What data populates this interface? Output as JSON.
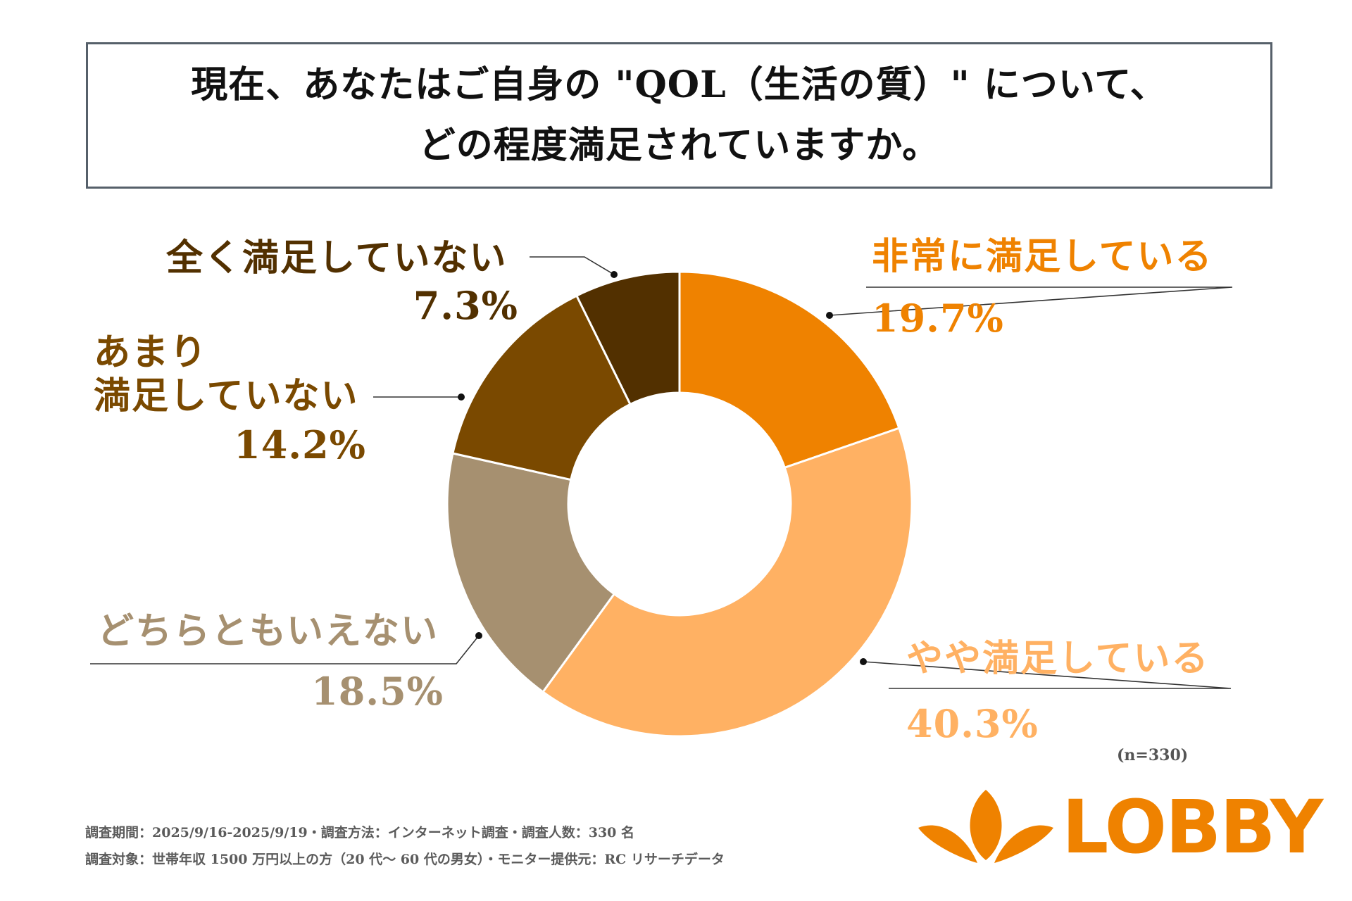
{
  "header": {
    "title_line1": "現在、あなたはご自身の \"QOL（生活の質）\" について、",
    "title_line2": "どの程度満足されていますか。"
  },
  "chart_data": {
    "type": "donut",
    "title": "現在、あなたはご自身の \"QOL（生活の質）\" について、どの程度満足されていますか。",
    "unit": "%",
    "slices": [
      {
        "label": "非常に満足している",
        "value": 19.7,
        "display": "19.7%",
        "color": "#ef8200"
      },
      {
        "label": "やや満足している",
        "value": 40.3,
        "display": "40.3%",
        "color": "#ffb163"
      },
      {
        "label": "どちらともいえない",
        "value": 18.5,
        "display": "18.5%",
        "color": "#a69070"
      },
      {
        "label": "あまり満足していない",
        "label_lines": [
          "あまり",
          "満足していない"
        ],
        "value": 14.2,
        "display": "14.2%",
        "color": "#7a4900"
      },
      {
        "label": "全く満足していない",
        "value": 7.3,
        "display": "7.3%",
        "color": "#523000"
      }
    ],
    "start": "12 o'clock",
    "direction": "clockwise",
    "separator_color": "#ffffff",
    "leader_line_color": "#333333"
  },
  "footer": {
    "sample_size": "(n=330)",
    "note_line1": "調査期間：2025/9/16-2025/9/19・調査方法：インターネット調査・調査人数：330 名",
    "note_line2": "調査対象：世帯年収 1500 万円以上の方（20 代～ 60 代の男女）・モニター提供元：RC リサーチデータ"
  },
  "logo": {
    "text": "LOBBY",
    "color": "#ef8200"
  }
}
